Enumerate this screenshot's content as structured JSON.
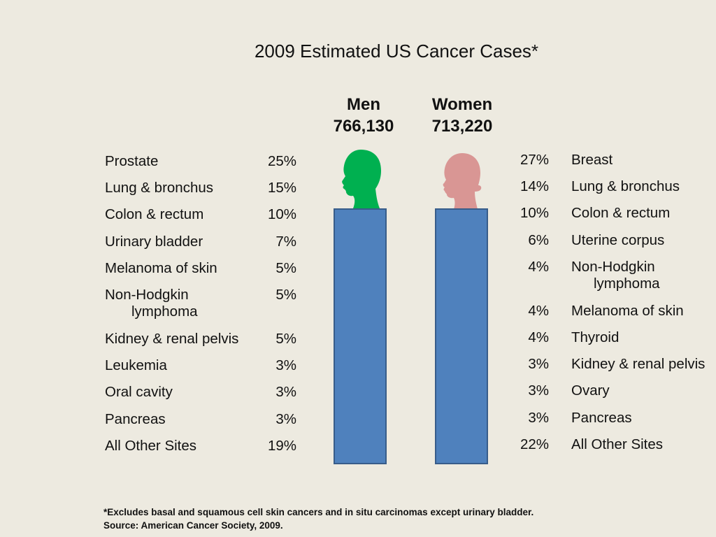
{
  "title": "2009 Estimated US Cancer Cases*",
  "men": {
    "label": "Men",
    "total": "766,130",
    "rows": [
      {
        "site": "Prostate",
        "pct": "25%"
      },
      {
        "site": "Lung & bronchus",
        "pct": "15%"
      },
      {
        "site": "Colon & rectum",
        "pct": "10%"
      },
      {
        "site": "Urinary bladder",
        "pct": "7%"
      },
      {
        "site": "Melanoma of skin",
        "pct": "5%"
      },
      {
        "site": "Non-Hodgkin",
        "site2": "lymphoma",
        "pct": "5%"
      },
      {
        "site": "Kidney & renal pelvis",
        "pct": "5%"
      },
      {
        "site": "Leukemia",
        "pct": "3%"
      },
      {
        "site": "Oral cavity",
        "pct": "3%"
      },
      {
        "site": "Pancreas",
        "pct": "3%"
      },
      {
        "site": "All Other Sites",
        "pct": "19%"
      }
    ]
  },
  "women": {
    "label": "Women",
    "total": "713,220",
    "rows": [
      {
        "site": "Breast",
        "pct": "27%"
      },
      {
        "site": "Lung & bronchus",
        "pct": "14%"
      },
      {
        "site": "Colon & rectum",
        "pct": "10%"
      },
      {
        "site": "Uterine corpus",
        "pct": "6%"
      },
      {
        "site": "Non-Hodgkin",
        "site2": "lymphoma",
        "pct": "4%"
      },
      {
        "site": "Melanoma of skin",
        "pct": "4%"
      },
      {
        "site": "Thyroid",
        "pct": "4%"
      },
      {
        "site": "Kidney & renal pelvis",
        "pct": "3%"
      },
      {
        "site": "Ovary",
        "pct": "3%"
      },
      {
        "site": "Pancreas",
        "pct": "3%"
      },
      {
        "site": "All Other Sites",
        "pct": "22%"
      }
    ]
  },
  "colors": {
    "men_head": "#00b050",
    "women_head": "#d99694",
    "bar": "#4f81bd",
    "background": "#edeae0"
  },
  "footnote": {
    "line1": "*Excludes basal and squamous cell skin cancers and in situ carcinomas except urinary bladder.",
    "line2": "Source: American Cancer Society, 2009."
  }
}
